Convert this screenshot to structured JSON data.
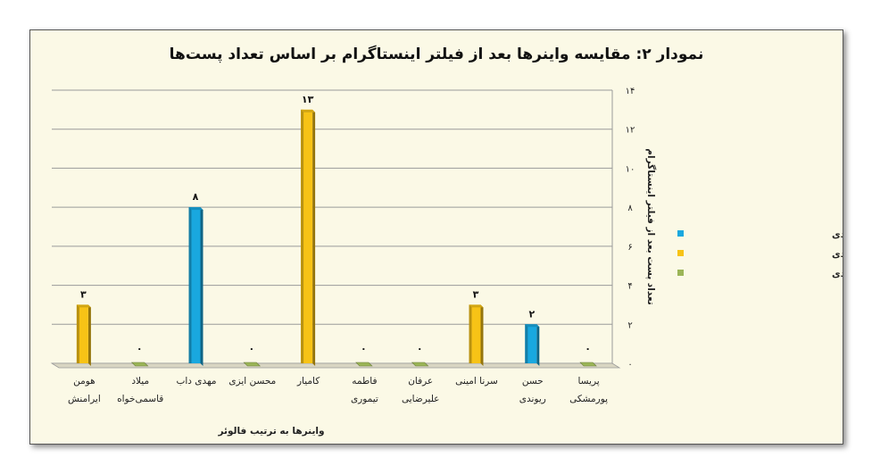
{
  "chart_data": {
    "type": "bar",
    "title": "نمودار ۲: مقایسه واینرها بعد از فیلتر اینستاگرام بر اساس تعداد پست‌ها",
    "xlabel": "واینرها به ترتیب فالوئر",
    "ylabel": "تعداد پست بعد از فیلتر اینستاگرام",
    "ylim": [
      0,
      14
    ],
    "yticks": [
      0,
      2,
      4,
      6,
      8,
      10,
      12,
      14
    ],
    "ytick_labels": [
      "۰",
      "۲",
      "۴",
      "۶",
      "۸",
      "۱۰",
      "۱۲",
      "۱۴"
    ],
    "grid": true,
    "legend_position": "right",
    "categories": [
      [
        "هومن",
        "ایرامنش"
      ],
      [
        "میلاد",
        "قاسمی‌خواه"
      ],
      [
        "مهدی داب"
      ],
      [
        "محسن ایزی"
      ],
      [
        "کامیار"
      ],
      [
        "فاطمه",
        "تیموری"
      ],
      [
        "عرفان",
        "علیرضایی"
      ],
      [
        "سرنا امینی"
      ],
      [
        "حسن",
        "ریوندی"
      ],
      [
        "پریسا",
        "پورمشکی"
      ]
    ],
    "values": [
      3,
      0,
      8,
      0,
      13,
      0,
      0,
      3,
      2,
      0
    ],
    "value_labels": [
      "۳",
      "۰",
      "۸",
      "۰",
      "۱۳",
      "۰",
      "۰",
      "۳",
      "۲",
      "۰"
    ],
    "bar_series": [
      1,
      2,
      0,
      2,
      1,
      2,
      2,
      1,
      0,
      2
    ],
    "series": [
      {
        "name": "بهمن ماه - بدون پست انتقادی",
        "color": "#19a8df"
      },
      {
        "name": "بهمن ماه - پست انتقادی",
        "color": "#f7c316"
      },
      {
        "name": "بدون فعالیت - بدون پست انتقادی",
        "color": "#9bb557"
      }
    ]
  }
}
